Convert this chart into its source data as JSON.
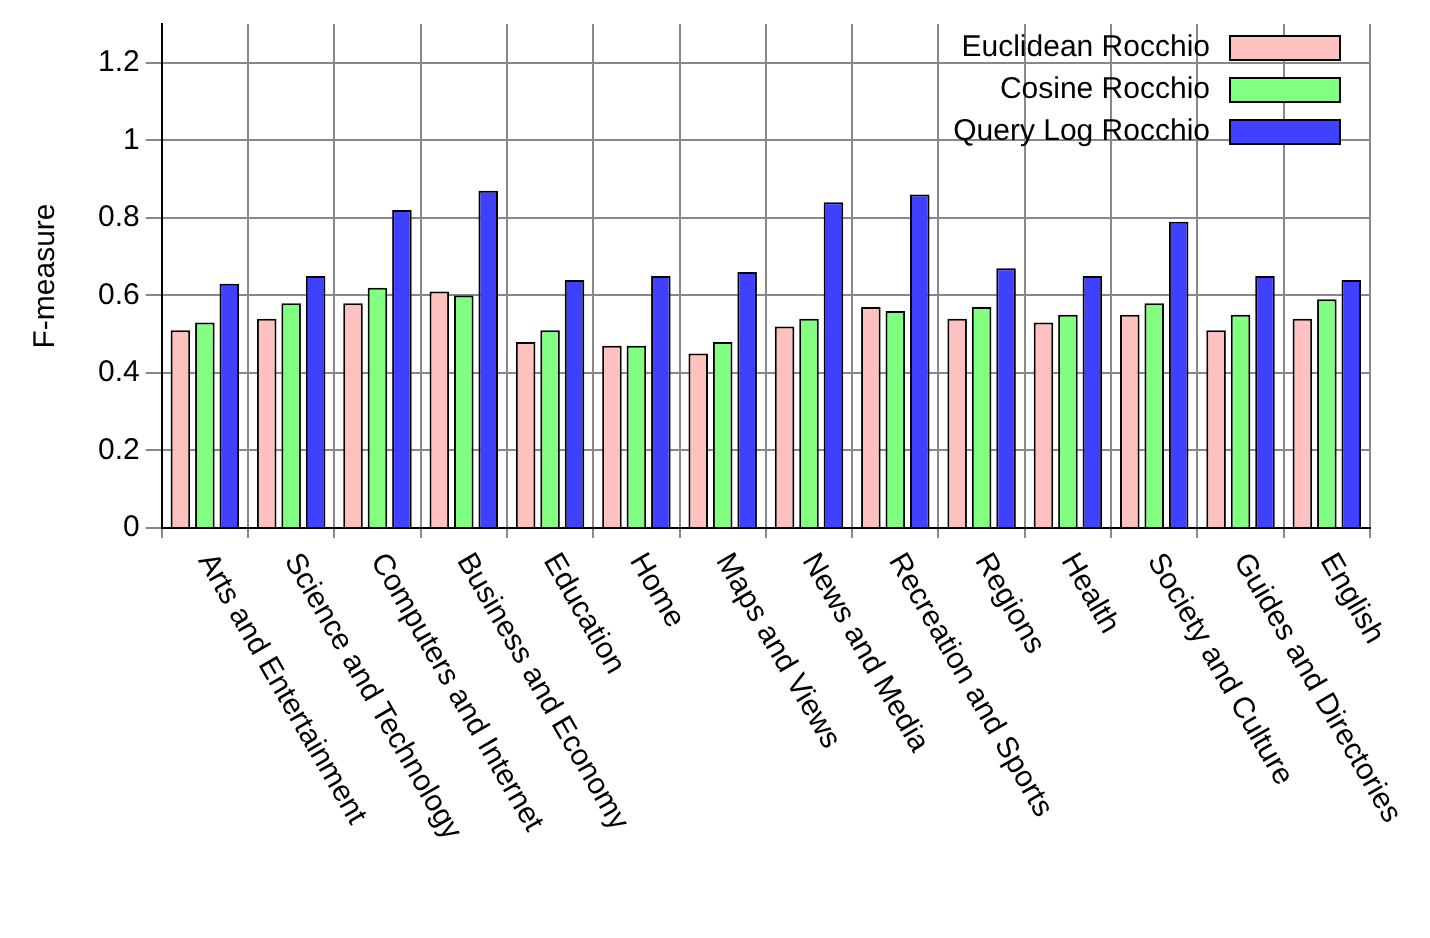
{
  "chart_data": {
    "type": "bar",
    "ylabel": "F-measure",
    "categories": [
      "Arts and Entertainment",
      "Science and Technology",
      "Computers and Internet",
      "Business and Economy",
      "Education",
      "Home",
      "Maps and Views",
      "News and Media",
      "Recreation and Sports",
      "Regions",
      "Health",
      "Society and Culture",
      "Guides and Directories",
      "English"
    ],
    "series": [
      {
        "name": "Euclidean Rocchio",
        "color": "#ffc0c0",
        "values": [
          0.51,
          0.54,
          0.58,
          0.61,
          0.48,
          0.47,
          0.45,
          0.52,
          0.57,
          0.54,
          0.53,
          0.55,
          0.51,
          0.54
        ]
      },
      {
        "name": "Cosine Rocchio",
        "color": "#80ff80",
        "values": [
          0.53,
          0.58,
          0.62,
          0.6,
          0.51,
          0.47,
          0.48,
          0.54,
          0.56,
          0.57,
          0.55,
          0.58,
          0.55,
          0.59
        ]
      },
      {
        "name": "Query Log Rocchio",
        "color": "#4040ff",
        "values": [
          0.63,
          0.65,
          0.82,
          0.87,
          0.64,
          0.65,
          0.66,
          0.84,
          0.86,
          0.67,
          0.65,
          0.79,
          0.65,
          0.64
        ]
      }
    ],
    "ylim": [
      0,
      1.3
    ],
    "yticks": [
      0,
      0.2,
      0.4,
      0.6,
      0.8,
      1,
      1.2
    ],
    "grid": true,
    "legend": "top right"
  }
}
